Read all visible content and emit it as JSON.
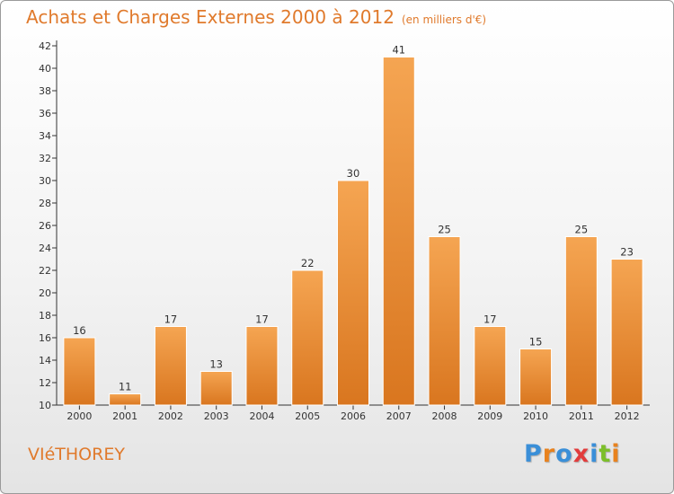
{
  "title": "Achats et Charges Externes 2000 à 2012",
  "subtitle": "(en milliers d'€)",
  "commune": "VIéTHOREY",
  "logo": {
    "letters": [
      "P",
      "r",
      "o",
      "x",
      "i",
      "t",
      "i"
    ],
    "colors": [
      "#3a8fd8",
      "#e8821e",
      "#3a8fd8",
      "#e23c3c",
      "#3a8fd8",
      "#7cbf2a",
      "#e8821e"
    ]
  },
  "colors": {
    "accent": "#e07a2c",
    "bar_top": "#f5a552",
    "bar_bottom": "#d9761f"
  },
  "chart_data": {
    "type": "bar",
    "title": "Achats et Charges Externes 2000 à 2012",
    "subtitle": "(en milliers d'€)",
    "categories": [
      "2000",
      "2001",
      "2002",
      "2003",
      "2004",
      "2005",
      "2006",
      "2007",
      "2008",
      "2009",
      "2010",
      "2011",
      "2012"
    ],
    "values": [
      16,
      11,
      17,
      13,
      17,
      22,
      30,
      41,
      25,
      17,
      15,
      25,
      23
    ],
    "ylim": [
      10,
      42
    ],
    "yticks": [
      10,
      12,
      14,
      16,
      18,
      20,
      22,
      24,
      26,
      28,
      30,
      32,
      34,
      36,
      38,
      40,
      42
    ],
    "grid": false,
    "xlabel": "",
    "ylabel": ""
  }
}
